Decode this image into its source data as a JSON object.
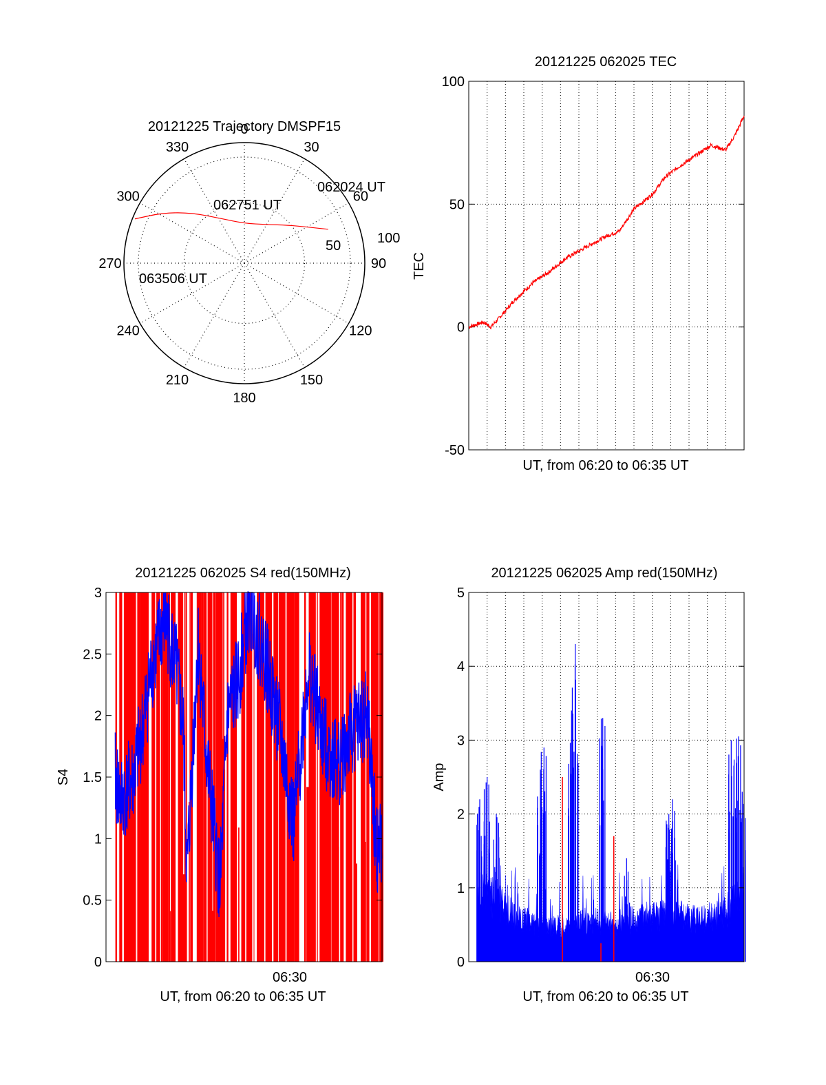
{
  "colors": {
    "red": "#ff0000",
    "blue": "#0000ff",
    "black": "#000000"
  },
  "chart_data": [
    {
      "id": "trajectory",
      "type": "polar",
      "title": "20121225 Trajectory DMSPF15",
      "azimuth_labels": [
        "0",
        "30",
        "60",
        "90",
        "120",
        "150",
        "180",
        "210",
        "240",
        "270",
        "300",
        "330"
      ],
      "radial_labels": [
        "50",
        "100"
      ],
      "r_max": 100,
      "series": [
        {
          "points": [
            {
              "az": 68,
              "r": 75
            },
            {
              "az": 60,
              "r": 60
            },
            {
              "az": 49,
              "r": 48
            },
            {
              "az": 30,
              "r": 37
            },
            {
              "az": 0,
              "r": 33
            },
            {
              "az": -28,
              "r": 42
            },
            {
              "az": -46,
              "r": 60
            },
            {
              "az": -58,
              "r": 79
            },
            {
              "az": -68,
              "r": 98
            }
          ]
        }
      ],
      "annotations": [
        {
          "text": "062024 UT",
          "az": 68,
          "r": 75
        },
        {
          "text": "062751 UT",
          "az": -28,
          "r": 42
        },
        {
          "text": "063506 UT",
          "az": -68,
          "r": 98
        }
      ]
    },
    {
      "id": "tec",
      "type": "line",
      "title": "20121225 062025 TEC",
      "xlabel": "UT, from 06:20 to 06:35 UT",
      "ylabel": "TEC",
      "ylim": [
        -50,
        100
      ],
      "yticks": [
        "-50",
        "0",
        "50",
        "100"
      ],
      "xlim": [
        0,
        15
      ],
      "series": [
        {
          "x": [
            0,
            0.8,
            1.2,
            1.7,
            2.5,
            3.5,
            4.3,
            5.3,
            6.5,
            7.5,
            8.2,
            9.0,
            10.0,
            10.7,
            11.4,
            12.2,
            13.2,
            14.0,
            14.5,
            15.0
          ],
          "values": [
            0,
            2,
            0,
            4,
            11,
            18,
            22,
            28,
            33,
            37,
            39,
            48,
            54,
            61,
            65,
            69,
            74,
            72,
            78,
            86
          ]
        }
      ]
    },
    {
      "id": "s4",
      "type": "line",
      "title": "20121225 062025 S4 red(150MHz)",
      "xlabel": "UT, from 06:20 to 06:35 UT",
      "ylabel": "S4",
      "ylim": [
        0,
        3
      ],
      "yticks": [
        "0",
        "0.5",
        "1",
        "1.5",
        "2",
        "2.5",
        "3"
      ],
      "xtick_labels": [
        "06:30"
      ],
      "xlim": [
        0,
        15
      ],
      "series": [
        {
          "x": [
            0.5,
            0.8,
            1.5,
            2.0,
            2.5,
            3.2,
            3.8,
            4.2,
            4.4,
            5.0,
            5.5,
            6.2,
            6.6,
            7.2,
            7.8,
            8.6,
            9.4,
            10.2,
            11.0,
            11.8,
            12.6,
            13.5,
            14.2,
            14.7,
            15.0
          ],
          "values": [
            1.5,
            1.3,
            1.5,
            1.9,
            2.4,
            2.8,
            2.4,
            1.9,
            0.7,
            2.6,
            1.6,
            0.6,
            2.0,
            2.3,
            2.9,
            2.5,
            1.9,
            1.1,
            2.4,
            1.8,
            1.6,
            1.9,
            2.0,
            0.9,
            0.95
          ]
        }
      ]
    },
    {
      "id": "amp",
      "type": "line",
      "title": "20121225 062025 Amp red(150MHz)",
      "xlabel": "UT, from 06:20 to 06:35 UT",
      "ylabel": "Amp",
      "ylim": [
        0,
        5
      ],
      "yticks": [
        "0",
        "1",
        "2",
        "3",
        "4",
        "5"
      ],
      "xtick_labels": [
        "06:30"
      ],
      "xlim": [
        0,
        15
      ],
      "series": [
        {
          "peaks": [
            {
              "x": 0.6,
              "y": 2.2
            },
            {
              "x": 1.0,
              "y": 2.5
            },
            {
              "x": 1.5,
              "y": 2.0
            },
            {
              "x": 3.9,
              "y": 2.6
            },
            {
              "x": 4.1,
              "y": 2.9
            },
            {
              "x": 5.6,
              "y": 3.4
            },
            {
              "x": 5.8,
              "y": 4.3
            },
            {
              "x": 7.3,
              "y": 3.3
            },
            {
              "x": 8.6,
              "y": 1.4
            },
            {
              "x": 10.9,
              "y": 2.0
            },
            {
              "x": 11.1,
              "y": 2.2
            },
            {
              "x": 14.3,
              "y": 3.0
            },
            {
              "x": 14.7,
              "y": 3.05
            },
            {
              "x": 14.9,
              "y": 2.3
            }
          ],
          "base": [
            {
              "x": 0.5,
              "y": 1.1
            },
            {
              "x": 1.5,
              "y": 1.0
            },
            {
              "x": 2.5,
              "y": 0.7
            },
            {
              "x": 3.5,
              "y": 0.6
            },
            {
              "x": 5.0,
              "y": 0.55
            },
            {
              "x": 6.5,
              "y": 0.65
            },
            {
              "x": 8.0,
              "y": 0.6
            },
            {
              "x": 9.5,
              "y": 0.7
            },
            {
              "x": 11.0,
              "y": 0.75
            },
            {
              "x": 12.5,
              "y": 0.65
            },
            {
              "x": 14.0,
              "y": 0.8
            },
            {
              "x": 15.0,
              "y": 1.1
            }
          ]
        },
        {
          "spikes": [
            {
              "x": 5.1,
              "y": 2.5
            },
            {
              "x": 7.9,
              "y": 1.7
            },
            {
              "x": 7.2,
              "y": 0.25
            }
          ]
        }
      ]
    }
  ]
}
